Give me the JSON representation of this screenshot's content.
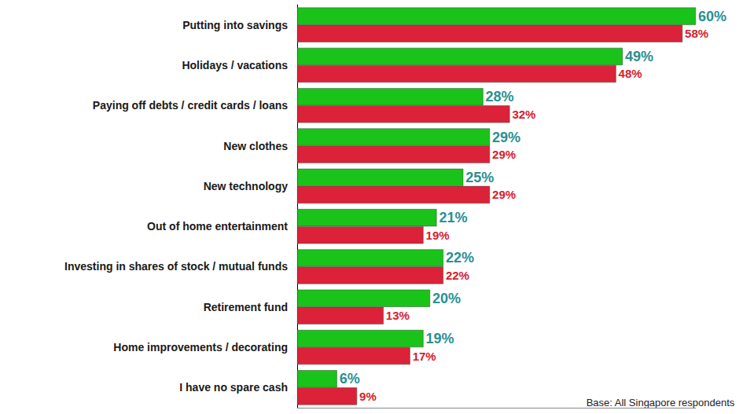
{
  "chart_data": {
    "type": "bar",
    "orientation": "horizontal",
    "categories": [
      "Putting into savings",
      "Holidays / vacations",
      "Paying off debts / credit cards / loans",
      "New clothes",
      "New technology",
      "Out of home entertainment",
      "Investing in shares of stock / mutual funds",
      "Retirement fund",
      "Home improvements / decorating",
      "I have no spare cash"
    ],
    "series": [
      {
        "color": "#19c319",
        "values": [
          60,
          49,
          28,
          29,
          25,
          21,
          22,
          20,
          19,
          6
        ],
        "value_labels": [
          "60%",
          "49%",
          "28%",
          "29%",
          "25%",
          "21%",
          "22%",
          "20%",
          "19%",
          "6%"
        ]
      },
      {
        "color": "#dc2238",
        "values": [
          58,
          48,
          32,
          29,
          29,
          19,
          22,
          13,
          17,
          9
        ],
        "value_labels": [
          "58%",
          "48%",
          "32%",
          "29%",
          "29%",
          "19%",
          "22%",
          "13%",
          "17%",
          "9%"
        ]
      }
    ],
    "xlim": [
      0,
      60
    ],
    "data_labels": true,
    "tick_labels": "y",
    "grid": false,
    "annotations": [
      "Base: All Singapore respondents"
    ]
  }
}
